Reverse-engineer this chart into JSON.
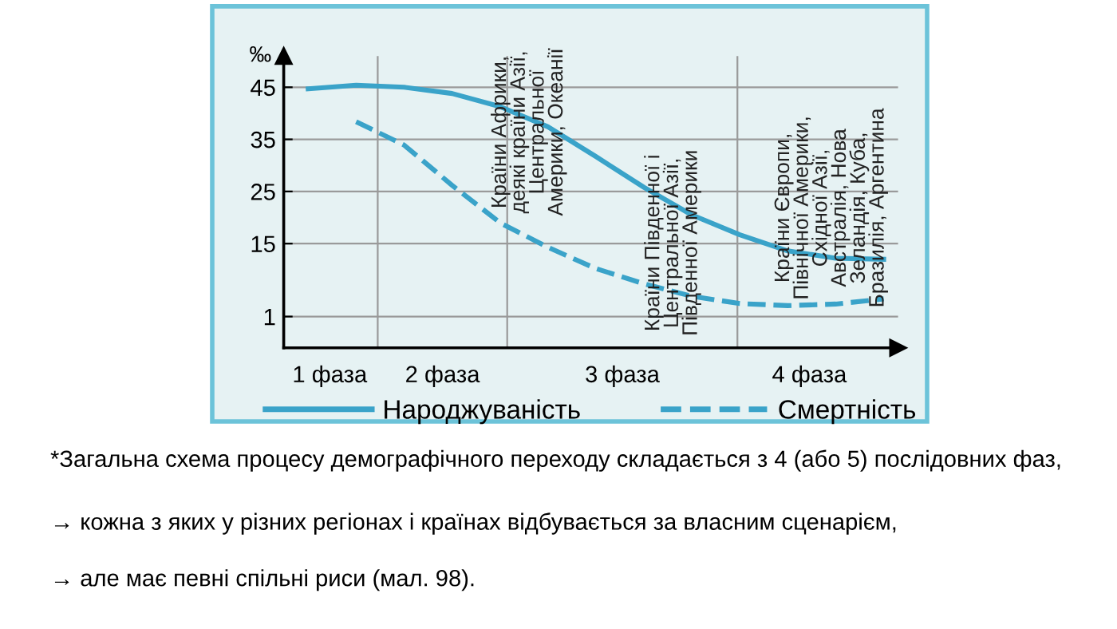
{
  "chart_data": {
    "type": "line",
    "ylabel": "‰",
    "categories": [
      null,
      null,
      null,
      null,
      null,
      null,
      null,
      null,
      null,
      null,
      null,
      null,
      null
    ],
    "ylim": [
      -5,
      51
    ],
    "yticks": [
      1,
      15,
      25,
      35,
      45
    ],
    "series": [
      {
        "name": "Народжуваність",
        "color": "#3aa3c9",
        "line_style": "solid",
        "values": [
          44.7,
          45.4,
          45.0,
          43.8,
          41.3,
          37.4,
          31.7,
          25.8,
          20.5,
          16.7,
          13.6,
          12.2,
          12.0
        ]
      },
      {
        "name": "Смертність",
        "color": "#3aa3c9",
        "line_style": "dashed",
        "values": [
          null,
          38.4,
          33.9,
          26.2,
          19.0,
          14.3,
          10.2,
          7.3,
          4.9,
          3.5,
          3.1,
          3.4,
          4.4
        ]
      }
    ],
    "grid": "y",
    "legend": "bottom",
    "marker": "none",
    "annotations": [
      "1 фаза",
      "2 фаза",
      "3 фаза",
      "4 фаза",
      "Країни Африки,\nдеякі країни Азії,\nЦентральної\nАмерики, Океанії",
      "Країни Південної і\nЦентральної Азії,\nПівденної Америки",
      "Країни Європи,\nПівнічної Америки,\nСхідної Азії,\nАвстралія, Нова\nЗеландія, Куба,\nБразилія, Аргентина",
      "*Загальна схема процесу демографічного переходу складається з 4 (або 5) послідовних фаз,",
      "→ кожна з яких у різних регіонах і країнах відбувається за власним сценарієм,",
      "→ але має певні спільні риси (мал. 98)."
    ]
  }
}
